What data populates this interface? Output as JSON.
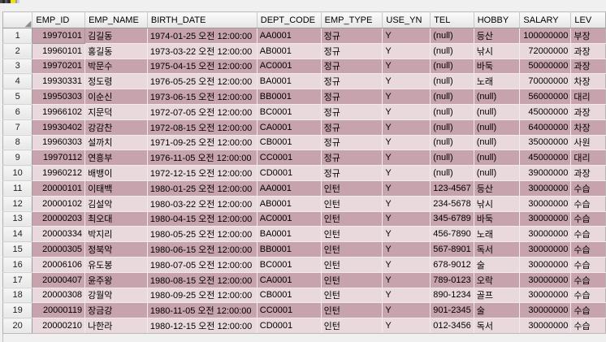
{
  "icons": {
    "select_all_triangle": "◢",
    "clipped_tab_icon": "partial toolbar tab icon (dark gray with yellow segment)"
  },
  "colors": {
    "row-odd": "#c6a3ad",
    "row-even": "#e9d8dc",
    "null-cell": "#fbfbfe",
    "panel-bg": "#f0f0f0"
  },
  "grid": {
    "null_text": "(null)",
    "focused_cell": {
      "row_index": 0,
      "column": "EMP_ID"
    },
    "columns": [
      {
        "key": "EMP_ID",
        "label": "EMP_ID"
      },
      {
        "key": "EMP_NAME",
        "label": "EMP_NAME"
      },
      {
        "key": "BIRTH_DATE",
        "label": "BIRTH_DATE"
      },
      {
        "key": "DEPT_CODE",
        "label": "DEPT_CODE"
      },
      {
        "key": "EMP_TYPE",
        "label": "EMP_TYPE"
      },
      {
        "key": "USE_YN",
        "label": "USE_YN"
      },
      {
        "key": "TEL",
        "label": "TEL"
      },
      {
        "key": "HOBBY",
        "label": "HOBBY"
      },
      {
        "key": "SALARY",
        "label": "SALARY"
      },
      {
        "key": "LEV",
        "label": "LEV"
      }
    ],
    "rows": [
      {
        "num": "1",
        "EMP_ID": "19970101",
        "EMP_NAME": "김길동",
        "BIRTH_DATE": "1974-01-25 오전 12:00:00",
        "DEPT_CODE": "AA0001",
        "EMP_TYPE": "정규",
        "USE_YN": "Y",
        "TEL": "(null)",
        "HOBBY": "등산",
        "SALARY": "100000000",
        "LEV": "부장"
      },
      {
        "num": "2",
        "EMP_ID": "19960101",
        "EMP_NAME": "홍길동",
        "BIRTH_DATE": "1973-03-22 오전 12:00:00",
        "DEPT_CODE": "AB0001",
        "EMP_TYPE": "정규",
        "USE_YN": "Y",
        "TEL": "(null)",
        "HOBBY": "낚시",
        "SALARY": "72000000",
        "LEV": "과장"
      },
      {
        "num": "3",
        "EMP_ID": "19970201",
        "EMP_NAME": "박문수",
        "BIRTH_DATE": "1975-04-15 오전 12:00:00",
        "DEPT_CODE": "AC0001",
        "EMP_TYPE": "정규",
        "USE_YN": "Y",
        "TEL": "(null)",
        "HOBBY": "바둑",
        "SALARY": "50000000",
        "LEV": "과장"
      },
      {
        "num": "4",
        "EMP_ID": "19930331",
        "EMP_NAME": "정도령",
        "BIRTH_DATE": "1976-05-25 오전 12:00:00",
        "DEPT_CODE": "BA0001",
        "EMP_TYPE": "정규",
        "USE_YN": "Y",
        "TEL": "(null)",
        "HOBBY": "노래",
        "SALARY": "70000000",
        "LEV": "차장"
      },
      {
        "num": "5",
        "EMP_ID": "19950303",
        "EMP_NAME": "이순신",
        "BIRTH_DATE": "1973-06-15 오전 12:00:00",
        "DEPT_CODE": "BB0001",
        "EMP_TYPE": "정규",
        "USE_YN": "Y",
        "TEL": "(null)",
        "HOBBY": "(null)",
        "SALARY": "56000000",
        "LEV": "대리"
      },
      {
        "num": "6",
        "EMP_ID": "19966102",
        "EMP_NAME": "지문덕",
        "BIRTH_DATE": "1972-07-05 오전 12:00:00",
        "DEPT_CODE": "BC0001",
        "EMP_TYPE": "정규",
        "USE_YN": "Y",
        "TEL": "(null)",
        "HOBBY": "(null)",
        "SALARY": "45000000",
        "LEV": "과장"
      },
      {
        "num": "7",
        "EMP_ID": "19930402",
        "EMP_NAME": "강감찬",
        "BIRTH_DATE": "1972-08-15 오전 12:00:00",
        "DEPT_CODE": "CA0001",
        "EMP_TYPE": "정규",
        "USE_YN": "Y",
        "TEL": "(null)",
        "HOBBY": "(null)",
        "SALARY": "64000000",
        "LEV": "차장"
      },
      {
        "num": "8",
        "EMP_ID": "19960303",
        "EMP_NAME": "설까치",
        "BIRTH_DATE": "1971-09-25 오전 12:00:00",
        "DEPT_CODE": "CB0001",
        "EMP_TYPE": "정규",
        "USE_YN": "Y",
        "TEL": "(null)",
        "HOBBY": "(null)",
        "SALARY": "35000000",
        "LEV": "사원"
      },
      {
        "num": "9",
        "EMP_ID": "19970112",
        "EMP_NAME": "연흥부",
        "BIRTH_DATE": "1976-11-05 오전 12:00:00",
        "DEPT_CODE": "CC0001",
        "EMP_TYPE": "정규",
        "USE_YN": "Y",
        "TEL": "(null)",
        "HOBBY": "(null)",
        "SALARY": "45000000",
        "LEV": "대리"
      },
      {
        "num": "10",
        "EMP_ID": "19960212",
        "EMP_NAME": "배뱅이",
        "BIRTH_DATE": "1972-12-15 오전 12:00:00",
        "DEPT_CODE": "CD0001",
        "EMP_TYPE": "정규",
        "USE_YN": "Y",
        "TEL": "(null)",
        "HOBBY": "(null)",
        "SALARY": "39000000",
        "LEV": "과장"
      },
      {
        "num": "11",
        "EMP_ID": "20000101",
        "EMP_NAME": "이태백",
        "BIRTH_DATE": "1980-01-25 오전 12:00:00",
        "DEPT_CODE": "AA0001",
        "EMP_TYPE": "인턴",
        "USE_YN": "Y",
        "TEL": "123-4567",
        "HOBBY": "등산",
        "SALARY": "30000000",
        "LEV": "수습"
      },
      {
        "num": "12",
        "EMP_ID": "20000102",
        "EMP_NAME": "김설악",
        "BIRTH_DATE": "1980-03-22 오전 12:00:00",
        "DEPT_CODE": "AB0001",
        "EMP_TYPE": "인턴",
        "USE_YN": "Y",
        "TEL": "234-5678",
        "HOBBY": "낚시",
        "SALARY": "30000000",
        "LEV": "수습"
      },
      {
        "num": "13",
        "EMP_ID": "20000203",
        "EMP_NAME": "최오대",
        "BIRTH_DATE": "1980-04-15 오전 12:00:00",
        "DEPT_CODE": "AC0001",
        "EMP_TYPE": "인턴",
        "USE_YN": "Y",
        "TEL": "345-6789",
        "HOBBY": "바둑",
        "SALARY": "30000000",
        "LEV": "수습"
      },
      {
        "num": "14",
        "EMP_ID": "20000334",
        "EMP_NAME": "박지리",
        "BIRTH_DATE": "1980-05-25 오전 12:00:00",
        "DEPT_CODE": "BA0001",
        "EMP_TYPE": "인턴",
        "USE_YN": "Y",
        "TEL": "456-7890",
        "HOBBY": "노래",
        "SALARY": "30000000",
        "LEV": "수습"
      },
      {
        "num": "15",
        "EMP_ID": "20000305",
        "EMP_NAME": "정북악",
        "BIRTH_DATE": "1980-06-15 오전 12:00:00",
        "DEPT_CODE": "BB0001",
        "EMP_TYPE": "인턴",
        "USE_YN": "Y",
        "TEL": "567-8901",
        "HOBBY": "독서",
        "SALARY": "30000000",
        "LEV": "수습"
      },
      {
        "num": "16",
        "EMP_ID": "20006106",
        "EMP_NAME": "유도봉",
        "BIRTH_DATE": "1980-07-05 오전 12:00:00",
        "DEPT_CODE": "BC0001",
        "EMP_TYPE": "인턴",
        "USE_YN": "Y",
        "TEL": "678-9012",
        "HOBBY": "술",
        "SALARY": "30000000",
        "LEV": "수습"
      },
      {
        "num": "17",
        "EMP_ID": "20000407",
        "EMP_NAME": "윤주왕",
        "BIRTH_DATE": "1980-08-15 오전 12:00:00",
        "DEPT_CODE": "CA0001",
        "EMP_TYPE": "인턴",
        "USE_YN": "Y",
        "TEL": "789-0123",
        "HOBBY": "오락",
        "SALARY": "30000000",
        "LEV": "수습"
      },
      {
        "num": "18",
        "EMP_ID": "20000308",
        "EMP_NAME": "강월악",
        "BIRTH_DATE": "1980-09-25 오전 12:00:00",
        "DEPT_CODE": "CB0001",
        "EMP_TYPE": "인턴",
        "USE_YN": "Y",
        "TEL": "890-1234",
        "HOBBY": "골프",
        "SALARY": "30000000",
        "LEV": "수습"
      },
      {
        "num": "19",
        "EMP_ID": "20000119",
        "EMP_NAME": "장금강",
        "BIRTH_DATE": "1980-11-05 오전 12:00:00",
        "DEPT_CODE": "CC0001",
        "EMP_TYPE": "인턴",
        "USE_YN": "Y",
        "TEL": "901-2345",
        "HOBBY": "술",
        "SALARY": "30000000",
        "LEV": "수습"
      },
      {
        "num": "20",
        "EMP_ID": "20000210",
        "EMP_NAME": "나한라",
        "BIRTH_DATE": "1980-12-15 오전 12:00:00",
        "DEPT_CODE": "CD0001",
        "EMP_TYPE": "인턴",
        "USE_YN": "Y",
        "TEL": "012-3456",
        "HOBBY": "독서",
        "SALARY": "30000000",
        "LEV": "수습"
      }
    ]
  }
}
